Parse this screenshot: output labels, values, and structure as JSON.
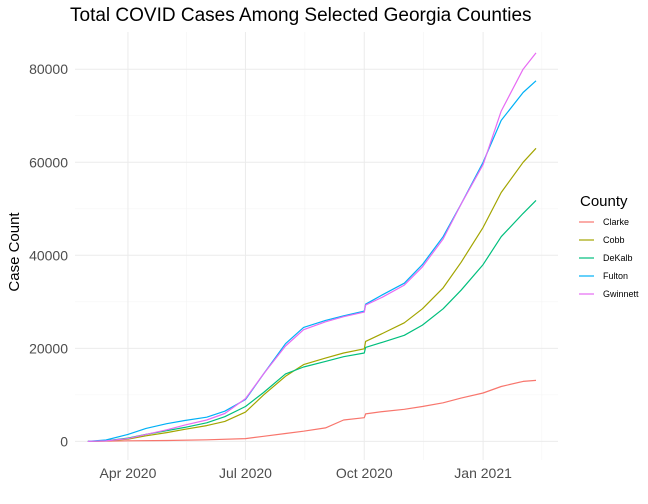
{
  "chart_data": {
    "type": "line",
    "title": "Total COVID Cases Among Selected Georgia Counties",
    "xlabel": "",
    "ylabel": "Case Count",
    "x_tick_labels": [
      "Apr 2020",
      "Jul 2020",
      "Oct 2020",
      "Jan 2021"
    ],
    "x_ticks": [
      "2020-04-01",
      "2020-07-01",
      "2020-10-01",
      "2021-01-01"
    ],
    "xlim": [
      "2020-02-20",
      "2021-02-28"
    ],
    "y_ticks": [
      0,
      20000,
      40000,
      60000,
      80000
    ],
    "ylim": [
      -4000,
      88000
    ],
    "grid": true,
    "legend": {
      "title": "County",
      "position": "right"
    },
    "series": [
      {
        "name": "Clarke",
        "color": "#F8766D",
        "x": [
          "2020-03-01",
          "2020-03-15",
          "2020-04-01",
          "2020-05-01",
          "2020-06-01",
          "2020-07-01",
          "2020-07-15",
          "2020-08-01",
          "2020-08-15",
          "2020-09-01",
          "2020-09-15",
          "2020-10-01",
          "2020-10-02",
          "2020-10-15",
          "2020-11-01",
          "2020-11-15",
          "2020-12-01",
          "2020-12-15",
          "2021-01-01",
          "2021-01-15",
          "2021-02-01",
          "2021-02-11"
        ],
        "y": [
          0,
          50,
          120,
          200,
          350,
          600,
          1100,
          1700,
          2200,
          2900,
          4600,
          5100,
          5900,
          6400,
          6900,
          7500,
          8300,
          9300,
          10400,
          11800,
          12900,
          13100
        ]
      },
      {
        "name": "Cobb",
        "color": "#A3A500",
        "x": [
          "2020-03-01",
          "2020-03-15",
          "2020-04-01",
          "2020-04-15",
          "2020-05-01",
          "2020-05-15",
          "2020-06-01",
          "2020-06-15",
          "2020-07-01",
          "2020-07-15",
          "2020-08-01",
          "2020-08-15",
          "2020-09-01",
          "2020-09-15",
          "2020-10-01",
          "2020-10-02",
          "2020-10-15",
          "2020-11-01",
          "2020-11-15",
          "2020-12-01",
          "2020-12-15",
          "2021-01-01",
          "2021-01-15",
          "2021-02-01",
          "2021-02-11"
        ],
        "y": [
          0,
          100,
          500,
          1200,
          1900,
          2600,
          3400,
          4300,
          6300,
          10000,
          14000,
          16500,
          17900,
          19000,
          19900,
          21500,
          23200,
          25500,
          28500,
          33000,
          38500,
          46000,
          53500,
          60000,
          63000
        ]
      },
      {
        "name": "DeKalb",
        "color": "#00BF7D",
        "x": [
          "2020-03-01",
          "2020-03-15",
          "2020-04-01",
          "2020-04-15",
          "2020-05-01",
          "2020-05-15",
          "2020-06-01",
          "2020-06-15",
          "2020-07-01",
          "2020-07-15",
          "2020-08-01",
          "2020-08-15",
          "2020-09-01",
          "2020-09-15",
          "2020-10-01",
          "2020-10-02",
          "2020-10-15",
          "2020-11-01",
          "2020-11-15",
          "2020-12-01",
          "2020-12-15",
          "2021-01-01",
          "2021-01-15",
          "2021-02-01",
          "2021-02-11"
        ],
        "y": [
          0,
          150,
          700,
          1500,
          2300,
          3000,
          4000,
          5300,
          7500,
          10500,
          14500,
          16000,
          17200,
          18200,
          19000,
          20200,
          21300,
          22800,
          25000,
          28500,
          32500,
          38000,
          44000,
          49000,
          51800
        ]
      },
      {
        "name": "Fulton",
        "color": "#00B0F6",
        "x": [
          "2020-03-01",
          "2020-03-15",
          "2020-04-01",
          "2020-04-15",
          "2020-05-01",
          "2020-05-15",
          "2020-06-01",
          "2020-06-15",
          "2020-07-01",
          "2020-07-15",
          "2020-08-01",
          "2020-08-15",
          "2020-09-01",
          "2020-09-15",
          "2020-10-01",
          "2020-10-02",
          "2020-10-15",
          "2020-11-01",
          "2020-11-15",
          "2020-12-01",
          "2020-12-15",
          "2021-01-01",
          "2021-01-15",
          "2021-02-01",
          "2021-02-11"
        ],
        "y": [
          0,
          300,
          1500,
          2800,
          3800,
          4500,
          5200,
          6500,
          9000,
          14500,
          21000,
          24500,
          26000,
          27000,
          28000,
          29500,
          31500,
          34000,
          38000,
          44000,
          51000,
          60000,
          69000,
          75000,
          77500
        ]
      },
      {
        "name": "Gwinnett",
        "color": "#E76BF3",
        "x": [
          "2020-03-01",
          "2020-03-15",
          "2020-04-01",
          "2020-04-15",
          "2020-05-01",
          "2020-05-15",
          "2020-06-01",
          "2020-06-15",
          "2020-07-01",
          "2020-07-15",
          "2020-08-01",
          "2020-08-15",
          "2020-09-01",
          "2020-09-15",
          "2020-10-01",
          "2020-10-02",
          "2020-10-15",
          "2020-11-01",
          "2020-11-15",
          "2020-12-01",
          "2020-12-15",
          "2021-01-01",
          "2021-01-15",
          "2021-02-01",
          "2021-02-11"
        ],
        "y": [
          0,
          100,
          600,
          1500,
          2500,
          3500,
          4600,
          6000,
          9200,
          14500,
          20500,
          24000,
          25700,
          26800,
          27800,
          29300,
          31000,
          33600,
          37500,
          43500,
          51000,
          59500,
          71000,
          80000,
          83500
        ]
      }
    ]
  }
}
